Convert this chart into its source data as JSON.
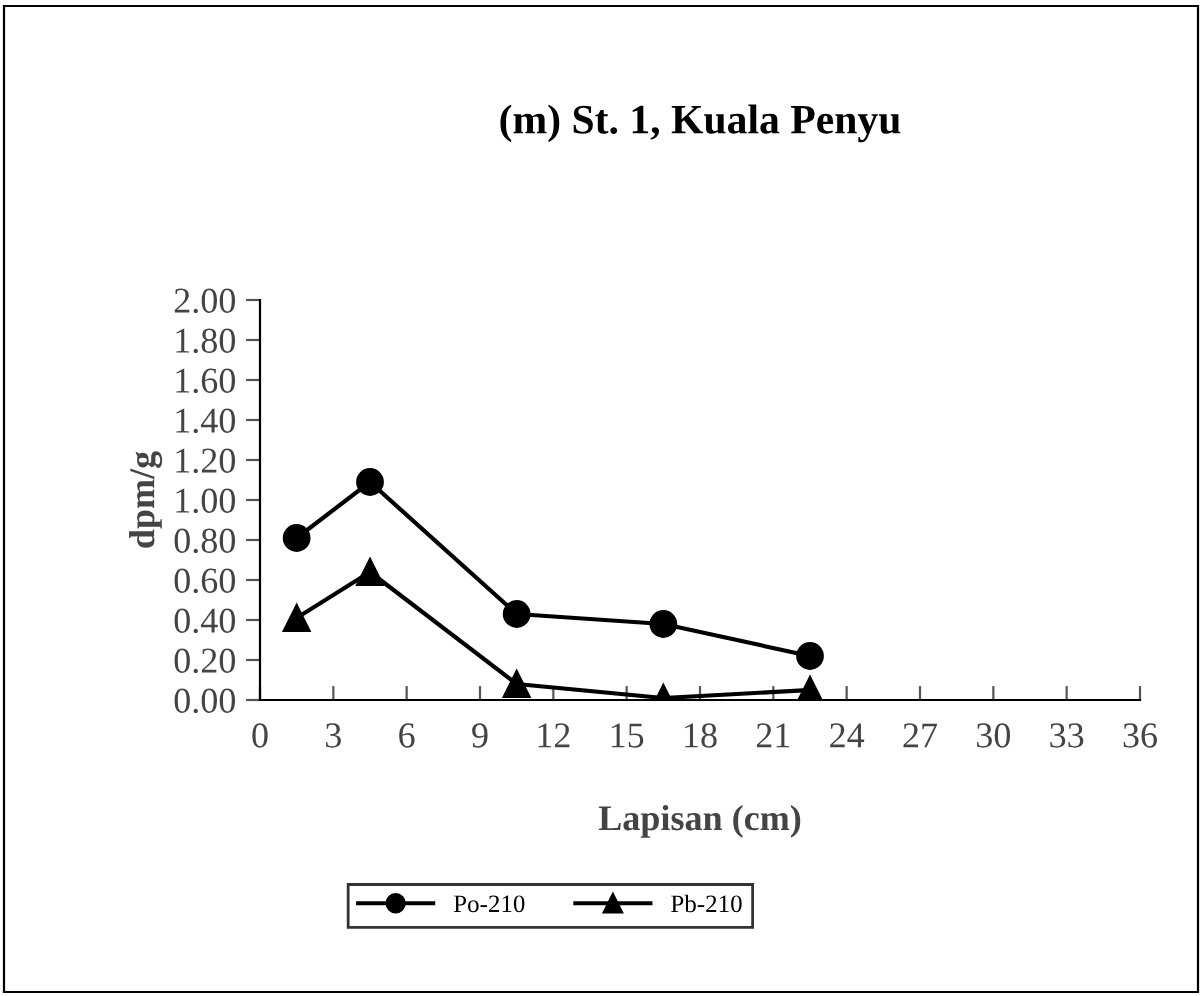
{
  "chart_data": {
    "type": "line",
    "title": "(m) St. 1, Kuala Penyu",
    "xlabel": "Lapisan (cm)",
    "ylabel": "dpm/g",
    "x": [
      1.5,
      4.5,
      10.5,
      16.5,
      22.5
    ],
    "series": [
      {
        "name": "Po-210",
        "color": "#000000",
        "marker": "circle",
        "values": [
          0.81,
          1.09,
          0.43,
          0.38,
          0.22
        ]
      },
      {
        "name": "Pb-210",
        "color": "#000000",
        "marker": "triangle",
        "values": [
          0.41,
          0.64,
          0.08,
          0.01,
          0.05
        ]
      }
    ],
    "xlim": [
      0,
      36
    ],
    "xticks": [
      0,
      3,
      6,
      9,
      12,
      15,
      18,
      21,
      24,
      27,
      30,
      33,
      36
    ],
    "ylim": [
      0,
      2
    ],
    "yticks": [
      {
        "value": 0,
        "label": "0.00"
      },
      {
        "value": 0.2,
        "label": "0.20"
      },
      {
        "value": 0.4,
        "label": "0.40"
      },
      {
        "value": 0.6,
        "label": "0.60"
      },
      {
        "value": 0.8,
        "label": "0.80"
      },
      {
        "value": 1.0,
        "label": "1.00"
      },
      {
        "value": 1.2,
        "label": "1.20"
      },
      {
        "value": 1.4,
        "label": "1.40"
      },
      {
        "value": 1.6,
        "label": "1.60"
      },
      {
        "value": 1.8,
        "label": "1.80"
      },
      {
        "value": 2.0,
        "label": "2.00"
      }
    ],
    "grid": false,
    "legend": "bottom",
    "line_style": "solid"
  }
}
